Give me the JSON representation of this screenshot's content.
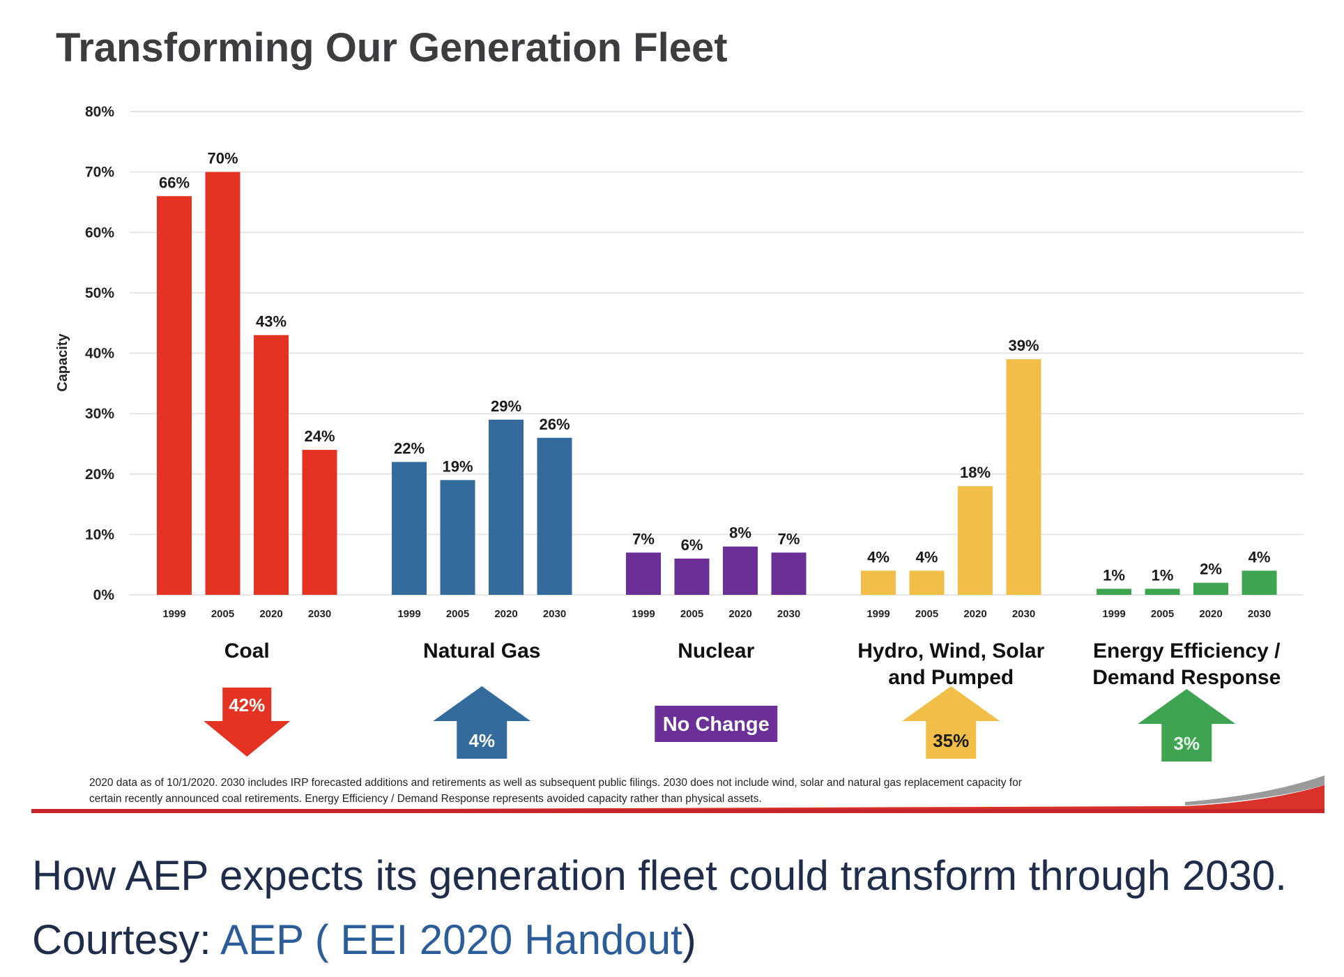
{
  "chart_data": {
    "type": "bar",
    "title": "Transforming Our Generation Fleet",
    "ylabel": "Capacity",
    "xlabel": "",
    "ylim": [
      0,
      80
    ],
    "yticks": [
      0,
      10,
      20,
      30,
      40,
      50,
      60,
      70,
      80
    ],
    "ytick_labels": [
      "0%",
      "10%",
      "20%",
      "30%",
      "40%",
      "50%",
      "60%",
      "70%",
      "80%"
    ],
    "grid": true,
    "years": [
      "1999",
      "2005",
      "2020",
      "2030"
    ],
    "groups": [
      {
        "name": "Coal",
        "label_lines": [
          "Coal"
        ],
        "color": "#e53323",
        "values": [
          66,
          70,
          43,
          24
        ],
        "value_labels": [
          "66%",
          "70%",
          "43%",
          "24%"
        ],
        "change": {
          "direction": "down",
          "text": "42%",
          "text_color": "#ffffff"
        }
      },
      {
        "name": "Natural Gas",
        "label_lines": [
          "Natural Gas"
        ],
        "color": "#336b9c",
        "values": [
          22,
          19,
          29,
          26
        ],
        "value_labels": [
          "22%",
          "19%",
          "29%",
          "26%"
        ],
        "change": {
          "direction": "up",
          "text": "4%",
          "text_color": "#ffffff"
        }
      },
      {
        "name": "Nuclear",
        "label_lines": [
          "Nuclear"
        ],
        "color": "#6b3096",
        "values": [
          7,
          6,
          8,
          7
        ],
        "value_labels": [
          "7%",
          "6%",
          "8%",
          "7%"
        ],
        "change": {
          "direction": "none",
          "text": "No Change",
          "text_color": "#ffffff"
        }
      },
      {
        "name": "Hydro, Wind, Solar and Pumped",
        "label_lines": [
          "Hydro, Wind, Solar",
          "and Pumped"
        ],
        "color": "#f1bf48",
        "values": [
          4,
          4,
          18,
          39
        ],
        "value_labels": [
          "4%",
          "4%",
          "18%",
          "39%"
        ],
        "change": {
          "direction": "up",
          "text": "35%",
          "text_color": "#1a1a1a"
        }
      },
      {
        "name": "Energy Efficiency / Demand Response",
        "label_lines": [
          "Energy Efficiency /",
          "Demand Response"
        ],
        "color": "#3fa452",
        "values": [
          1,
          1,
          2,
          4
        ],
        "value_labels": [
          "1%",
          "1%",
          "2%",
          "4%"
        ],
        "change": {
          "direction": "up",
          "text": "3%",
          "text_color": "#e8f5ea"
        }
      }
    ],
    "footnote": [
      "2020 data as of 10/1/2020. 2030 includes IRP forecasted additions and retirements as well as subsequent public filings. 2030 does not include wind, solar and natural gas replacement capacity for",
      "certain recently announced coal retirements. Energy Efficiency / Demand Response represents avoided capacity rather than physical assets."
    ]
  },
  "colors": {
    "accent_red": "#d9322a",
    "caption_text": "#1f2d4a",
    "caption_link": "#2b5d9b",
    "gridline": "#e6e6e6"
  },
  "caption": {
    "text": "How AEP expects its generation fleet could transform through 2030. Courtesy: ",
    "link_text": "AEP ( EEI 2020 Handout",
    "trailing": ")"
  }
}
